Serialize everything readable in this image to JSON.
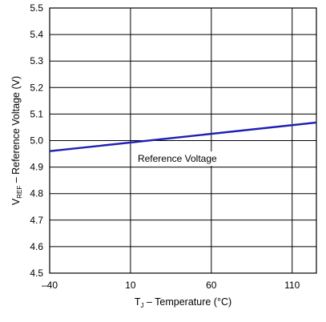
{
  "chart_data": {
    "type": "line",
    "x_ticks": [
      "-40",
      "10",
      "60",
      "110"
    ],
    "y_ticks": [
      "4.5",
      "4.6",
      "4.7",
      "4.8",
      "4.9",
      "5.0",
      "5.1",
      "5.2",
      "5.3",
      "5.4",
      "5.5"
    ],
    "xlim": [
      -40,
      125
    ],
    "ylim": [
      4.5,
      5.5
    ],
    "grid": true,
    "xlabel": {
      "main": "T",
      "sub": "J",
      "rest": " – Temperature (°C)"
    },
    "ylabel": {
      "main": "V",
      "sub": "REF",
      "rest": " – Reference Voltage (V)"
    },
    "series": [
      {
        "name": "Reference Voltage",
        "color": "#1f1fb4",
        "x": [
          -40,
          125
        ],
        "y": [
          4.96,
          5.068
        ]
      }
    ],
    "annotations": [
      {
        "text": "Reference Voltage",
        "x": 12,
        "y": 4.95
      }
    ]
  }
}
